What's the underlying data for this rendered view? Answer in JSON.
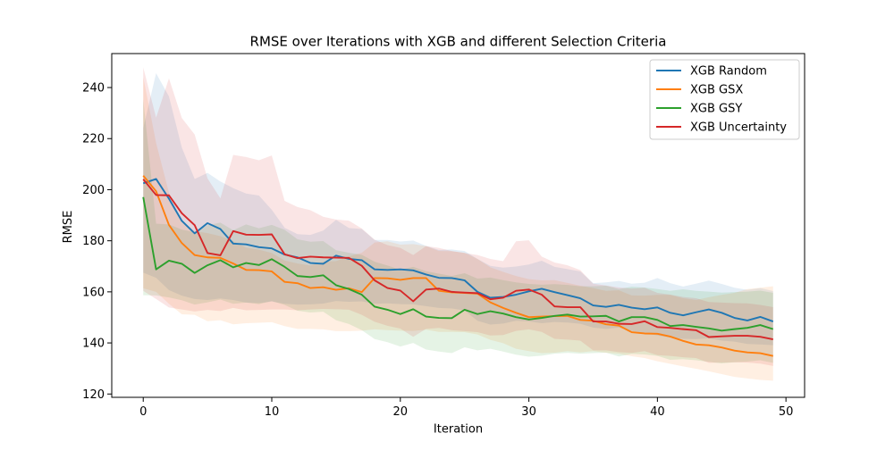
{
  "chart_data": {
    "type": "line",
    "title": "RMSE over Iterations with XGB and different Selection Criteria",
    "xlabel": "Iteration",
    "ylabel": "RMSE",
    "xlim": [
      -2.45,
      51.45
    ],
    "ylim": [
      118.7,
      253.3
    ],
    "xticks": [
      0,
      10,
      20,
      30,
      40,
      50
    ],
    "yticks": [
      120,
      140,
      160,
      180,
      200,
      220,
      240
    ],
    "grid": false,
    "legend_position": "top-right",
    "x": [
      0,
      1,
      2,
      3,
      4,
      5,
      6,
      7,
      8,
      9,
      10,
      11,
      12,
      13,
      14,
      15,
      16,
      17,
      18,
      19,
      20,
      21,
      22,
      23,
      24,
      25,
      26,
      27,
      28,
      29,
      30,
      31,
      32,
      33,
      34,
      35,
      36,
      37,
      38,
      39,
      40,
      41,
      42,
      43,
      44,
      45,
      46,
      47,
      48,
      49
    ],
    "series": [
      {
        "name": "XGB Random",
        "color": "#1f77b4",
        "values": [
          202.5,
          204.2,
          196.5,
          187.8,
          182.9,
          186.9,
          184.6,
          178.9,
          178.6,
          177.5,
          177.0,
          174.6,
          173.5,
          171.3,
          171.0,
          174.2,
          172.9,
          172.4,
          168.8,
          168.6,
          168.8,
          168.4,
          166.8,
          165.5,
          165.4,
          164.5,
          160.0,
          157.7,
          158.0,
          158.9,
          160.2,
          161.2,
          159.9,
          158.7,
          157.5,
          154.7,
          154.1,
          154.9,
          153.8,
          153.2,
          153.9,
          151.8,
          150.8,
          152.0,
          153.1,
          151.8,
          149.8,
          148.8,
          150.2,
          148.4
        ],
        "upper": [
          224.1,
          245.6,
          236.5,
          216.5,
          204.2,
          206.6,
          203.2,
          200.6,
          198.5,
          197.7,
          192.1,
          185.1,
          182.6,
          182.3,
          184.0,
          188.2,
          185.0,
          184.6,
          180.3,
          180.3,
          179.7,
          180.1,
          178.0,
          176.4,
          176.6,
          176.0,
          172.9,
          170.2,
          169.5,
          169.9,
          170.7,
          172.2,
          169.8,
          168.9,
          168.0,
          163.4,
          163.7,
          164.3,
          163.2,
          163.6,
          165.4,
          163.4,
          162.1,
          163.2,
          164.4,
          163.1,
          161.6,
          160.8,
          161.5,
          160.3
        ],
        "lower": [
          167.5,
          165.5,
          160.7,
          158.5,
          157.2,
          156.8,
          157.4,
          156.8,
          155.8,
          155.6,
          156.2,
          155.3,
          155.0,
          155.1,
          155.4,
          156.4,
          156.1,
          156.3,
          155.3,
          155.5,
          155.2,
          155.1,
          154.4,
          153.7,
          153.5,
          152.7,
          148.7,
          147.2,
          147.6,
          148.7,
          148.4,
          147.7,
          148.2,
          148.0,
          147.5,
          146.0,
          145.5,
          146.0,
          144.7,
          143.8,
          142.9,
          142.1,
          141.6,
          141.5,
          141.8,
          140.9,
          140.5,
          139.6,
          139.4,
          139.1
        ]
      },
      {
        "name": "XGB GSX",
        "color": "#ff7f0e",
        "values": [
          205.5,
          199.4,
          186.2,
          179.1,
          174.4,
          173.5,
          173.3,
          171.1,
          168.6,
          168.5,
          168.0,
          163.9,
          163.4,
          161.5,
          161.8,
          160.8,
          161.4,
          159.9,
          165.4,
          165.3,
          164.7,
          165.4,
          165.4,
          160.4,
          159.8,
          159.6,
          159.3,
          155.9,
          153.7,
          151.8,
          150.1,
          150.3,
          150.5,
          150.6,
          149.0,
          148.7,
          147.3,
          146.8,
          144.2,
          143.7,
          143.6,
          142.5,
          140.8,
          139.4,
          139.1,
          138.2,
          137.0,
          136.3,
          136.0,
          134.9
        ],
        "upper": [
          244.1,
          218.3,
          198.8,
          187.6,
          183.8,
          183.0,
          181.8,
          179.9,
          177.3,
          176.5,
          175.2,
          172.3,
          171.1,
          170.3,
          171.9,
          172.0,
          173.9,
          175.3,
          179.3,
          179.8,
          178.5,
          178.7,
          177.9,
          176.0,
          175.9,
          175.3,
          172.9,
          169.6,
          167.8,
          166.2,
          165.0,
          164.5,
          164.6,
          163.5,
          162.4,
          161.5,
          160.4,
          160.6,
          158.6,
          158.5,
          158.8,
          158.8,
          157.5,
          156.8,
          157.9,
          158.8,
          159.6,
          161.1,
          161.6,
          162.2
        ],
        "lower": [
          161.4,
          160.0,
          155.3,
          151.2,
          151.0,
          148.5,
          148.9,
          147.3,
          147.7,
          147.9,
          148.1,
          146.6,
          145.5,
          145.5,
          145.3,
          144.6,
          144.6,
          144.8,
          145.3,
          145.0,
          144.8,
          144.7,
          145.2,
          144.3,
          144.3,
          144.2,
          143.3,
          141.2,
          139.9,
          137.7,
          136.8,
          136.0,
          136.2,
          136.8,
          136.3,
          136.8,
          136.2,
          135.8,
          134.8,
          134.1,
          132.8,
          131.8,
          130.8,
          129.9,
          128.9,
          127.8,
          126.7,
          126.1,
          125.5,
          125.2
        ]
      },
      {
        "name": "XGB GSY",
        "color": "#2ca02c",
        "values": [
          197.1,
          168.8,
          172.2,
          171.0,
          167.4,
          170.4,
          172.4,
          169.6,
          171.3,
          170.5,
          172.8,
          169.8,
          166.2,
          165.8,
          166.5,
          162.6,
          161.1,
          158.9,
          154.2,
          153.0,
          151.3,
          153.2,
          150.3,
          149.8,
          149.7,
          153.0,
          151.3,
          152.4,
          151.5,
          150.1,
          149.2,
          149.8,
          150.6,
          151.1,
          150.3,
          150.4,
          150.6,
          148.4,
          150.1,
          150.1,
          149.0,
          146.6,
          147.0,
          146.3,
          145.7,
          144.8,
          145.4,
          145.9,
          147.0,
          145.4
        ],
        "upper": [
          235.4,
          186.7,
          186.4,
          184.4,
          183.4,
          186.1,
          187.1,
          184.1,
          186.4,
          184.9,
          186.2,
          184.3,
          180.6,
          179.6,
          179.9,
          176.3,
          175.3,
          174.5,
          171.8,
          170.3,
          168.7,
          169.8,
          168.1,
          167.1,
          166.2,
          167.3,
          165.2,
          165.6,
          164.6,
          163.7,
          163.1,
          162.8,
          163.0,
          162.7,
          162.2,
          162.2,
          162.4,
          161.1,
          162.0,
          161.7,
          161.1,
          160.4,
          161.0,
          160.4,
          160.1,
          159.7,
          159.9,
          160.1,
          160.5,
          159.6
        ],
        "lower": [
          158.7,
          158.6,
          157.8,
          156.7,
          155.0,
          155.9,
          157.0,
          155.3,
          155.8,
          155.2,
          156.4,
          154.9,
          152.6,
          151.9,
          152.2,
          148.9,
          147.4,
          145.0,
          141.5,
          140.3,
          138.6,
          140.0,
          137.4,
          136.6,
          136.0,
          138.3,
          137.1,
          137.7,
          136.6,
          135.4,
          134.6,
          135.0,
          135.8,
          136.1,
          135.8,
          136.0,
          136.2,
          134.7,
          135.7,
          135.5,
          134.9,
          133.4,
          133.6,
          133.2,
          132.6,
          132.0,
          132.4,
          132.7,
          133.2,
          132.2
        ]
      },
      {
        "name": "XGB Uncertainty",
        "color": "#d62728",
        "values": [
          204.1,
          197.9,
          197.8,
          190.8,
          186.1,
          175.2,
          174.3,
          183.8,
          182.4,
          182.3,
          182.5,
          174.7,
          173.2,
          173.8,
          173.5,
          173.4,
          173.3,
          170.2,
          164.5,
          161.5,
          160.5,
          156.3,
          160.9,
          161.3,
          160.0,
          159.7,
          159.5,
          157.1,
          157.7,
          160.4,
          160.9,
          158.9,
          154.3,
          154.0,
          154.0,
          148.4,
          148.4,
          147.5,
          147.4,
          148.5,
          146.2,
          145.9,
          145.4,
          145.0,
          142.3,
          142.6,
          142.8,
          142.8,
          142.4,
          141.4
        ],
        "upper": [
          247.9,
          228.2,
          243.6,
          228.1,
          221.6,
          204.4,
          196.6,
          213.6,
          212.8,
          211.5,
          213.4,
          195.6,
          193.2,
          192.0,
          189.4,
          188.3,
          187.9,
          184.8,
          180.4,
          178.3,
          177.2,
          174.4,
          177.9,
          177.2,
          176.0,
          175.2,
          174.4,
          172.9,
          172.0,
          179.8,
          180.2,
          173.8,
          171.5,
          170.4,
          168.5,
          163.2,
          162.5,
          161.7,
          161.3,
          161.6,
          159.6,
          158.9,
          158.0,
          157.5,
          156.0,
          155.8,
          155.6,
          155.5,
          154.9,
          154.0
        ],
        "lower": [
          160.4,
          157.2,
          153.9,
          153.1,
          152.3,
          152.9,
          152.5,
          153.7,
          152.8,
          152.9,
          153.1,
          153.1,
          152.8,
          153.1,
          153.3,
          153.2,
          153.0,
          151.0,
          148.3,
          146.7,
          145.6,
          142.4,
          145.5,
          145.9,
          145.0,
          144.6,
          144.2,
          142.9,
          143.1,
          144.7,
          145.3,
          144.3,
          141.6,
          141.3,
          140.9,
          137.1,
          137.1,
          136.4,
          136.1,
          136.8,
          135.2,
          134.9,
          134.4,
          134.1,
          132.2,
          132.3,
          132.4,
          132.3,
          131.9,
          131.0
        ]
      }
    ]
  }
}
